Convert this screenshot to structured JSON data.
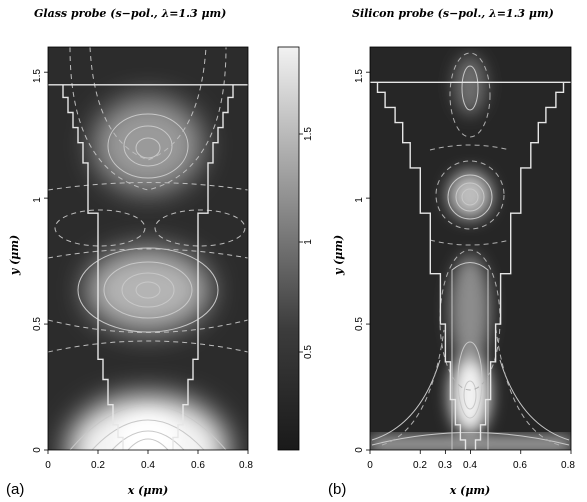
{
  "chart_data": [
    {
      "type": "heatmap",
      "panel_label": "(a)",
      "title": "Glass probe (s−pol., λ=1.3 μm)",
      "xlabel": "x (μm)",
      "ylabel": "y (μm)",
      "xlim": [
        0,
        0.8
      ],
      "ylim": [
        0,
        1.6
      ],
      "xticks": [
        "0",
        "0.2",
        "0.4",
        "0.6",
        "0.8"
      ],
      "yticks": [
        "0",
        "0.5",
        "1",
        "1.5"
      ],
      "hotspots": [
        {
          "x": 0.4,
          "y": 1.22,
          "intensity": 1.35
        },
        {
          "x": 0.4,
          "y": 0.64,
          "intensity": 1.55
        },
        {
          "x": 0.4,
          "y": 0.0,
          "intensity": 2.0
        }
      ],
      "probe_outline_halfwidth": [
        {
          "y": 0.0,
          "hw": 0.1
        },
        {
          "y": 0.05,
          "hw": 0.1
        },
        {
          "y": 0.05,
          "hw": 0.12
        },
        {
          "y": 0.1,
          "hw": 0.12
        },
        {
          "y": 0.1,
          "hw": 0.14
        },
        {
          "y": 0.18,
          "hw": 0.14
        },
        {
          "y": 0.18,
          "hw": 0.16
        },
        {
          "y": 0.28,
          "hw": 0.16
        },
        {
          "y": 0.28,
          "hw": 0.18
        },
        {
          "y": 0.36,
          "hw": 0.18
        },
        {
          "y": 0.36,
          "hw": 0.2
        },
        {
          "y": 0.94,
          "hw": 0.2
        },
        {
          "y": 0.94,
          "hw": 0.24
        },
        {
          "y": 1.14,
          "hw": 0.24
        },
        {
          "y": 1.14,
          "hw": 0.26
        },
        {
          "y": 1.22,
          "hw": 0.26
        },
        {
          "y": 1.22,
          "hw": 0.28
        },
        {
          "y": 1.28,
          "hw": 0.28
        },
        {
          "y": 1.28,
          "hw": 0.3
        },
        {
          "y": 1.34,
          "hw": 0.3
        },
        {
          "y": 1.34,
          "hw": 0.32
        },
        {
          "y": 1.4,
          "hw": 0.32
        },
        {
          "y": 1.4,
          "hw": 0.34
        },
        {
          "y": 1.45,
          "hw": 0.34
        },
        {
          "y": 1.45,
          "hw": 0.4
        }
      ]
    },
    {
      "type": "heatmap",
      "panel_label": "(b)",
      "title": "Silicon probe (s−pol., λ=1.3 μm)",
      "xlabel": "x (μm)",
      "ylabel": "y (μm)",
      "xlim": [
        0,
        0.8
      ],
      "ylim": [
        0,
        1.6
      ],
      "xticks": [
        "0",
        "0.2",
        "0.3",
        "0.4",
        "0.6",
        "0.8"
      ],
      "yticks": [
        "0",
        "0.5",
        "1",
        "1.5"
      ],
      "hotspots": [
        {
          "x": 0.4,
          "y": 1.45,
          "intensity": 1.2
        },
        {
          "x": 0.4,
          "y": 1.02,
          "intensity": 1.5
        },
        {
          "x": 0.4,
          "y": 0.55,
          "intensity": 1.3
        },
        {
          "x": 0.4,
          "y": 0.18,
          "intensity": 2.0
        }
      ],
      "probe_outline_halfwidth": [
        {
          "y": 0.0,
          "hw": 0.02
        },
        {
          "y": 0.04,
          "hw": 0.02
        },
        {
          "y": 0.04,
          "hw": 0.04
        },
        {
          "y": 0.1,
          "hw": 0.04
        },
        {
          "y": 0.1,
          "hw": 0.06
        },
        {
          "y": 0.2,
          "hw": 0.06
        },
        {
          "y": 0.2,
          "hw": 0.08
        },
        {
          "y": 0.35,
          "hw": 0.08
        },
        {
          "y": 0.35,
          "hw": 0.1
        },
        {
          "y": 0.5,
          "hw": 0.1
        },
        {
          "y": 0.5,
          "hw": 0.12
        },
        {
          "y": 0.7,
          "hw": 0.12
        },
        {
          "y": 0.7,
          "hw": 0.16
        },
        {
          "y": 0.94,
          "hw": 0.16
        },
        {
          "y": 0.94,
          "hw": 0.2
        },
        {
          "y": 1.12,
          "hw": 0.2
        },
        {
          "y": 1.12,
          "hw": 0.24
        },
        {
          "y": 1.22,
          "hw": 0.24
        },
        {
          "y": 1.22,
          "hw": 0.27
        },
        {
          "y": 1.3,
          "hw": 0.27
        },
        {
          "y": 1.3,
          "hw": 0.3
        },
        {
          "y": 1.36,
          "hw": 0.3
        },
        {
          "y": 1.36,
          "hw": 0.34
        },
        {
          "y": 1.42,
          "hw": 0.34
        },
        {
          "y": 1.42,
          "hw": 0.37
        },
        {
          "y": 1.46,
          "hw": 0.37
        },
        {
          "y": 1.46,
          "hw": 0.4
        }
      ]
    }
  ],
  "colorbar": {
    "range": [
      0.2,
      1.9
    ],
    "ticks": [
      "0.5",
      "1",
      "1.5"
    ],
    "colors": {
      "low": "#1a1a1a",
      "high": "#f2f2f2"
    }
  }
}
